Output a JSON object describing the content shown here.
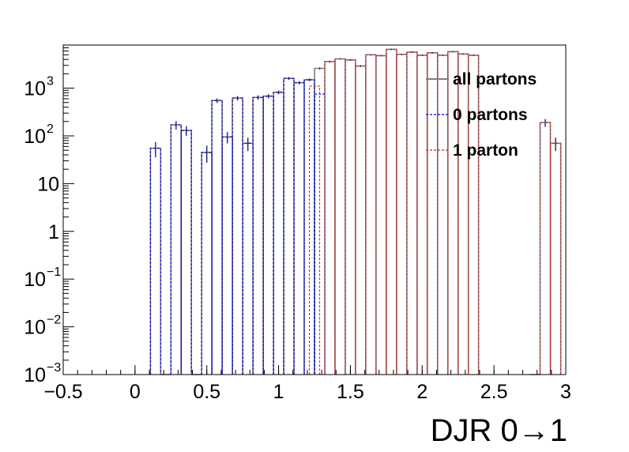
{
  "chart_data": {
    "type": "histogram",
    "xlabel": "DJR 0→1",
    "ylabel": "",
    "y_scale": "log",
    "xlim": [
      -0.5,
      3.0
    ],
    "ylim": [
      0.001,
      8000
    ],
    "bin_width": 0.0714,
    "x_ticks": [
      -0.5,
      0,
      0.5,
      1,
      1.5,
      2,
      2.5,
      3
    ],
    "x_tick_labels": [
      "−0.5",
      "0",
      "0.5",
      "1",
      "1.5",
      "2",
      "2.5",
      "3"
    ],
    "y_ticks": [
      {
        "value": 0.001,
        "base": "10",
        "exp": "−3"
      },
      {
        "value": 0.01,
        "base": "10",
        "exp": "−2"
      },
      {
        "value": 0.1,
        "base": "10",
        "exp": "−1"
      },
      {
        "value": 1,
        "base": "1",
        "exp": ""
      },
      {
        "value": 10,
        "base": "10",
        "exp": ""
      },
      {
        "value": 100,
        "base": "10",
        "exp": "2"
      },
      {
        "value": 1000,
        "base": "10",
        "exp": "3"
      }
    ],
    "legend": {
      "position": "top-right"
    },
    "series": [
      {
        "name": "all partons",
        "color": "#7f7f7f",
        "style": "solid",
        "x": [
          0.143,
          0.214,
          0.286,
          0.357,
          0.429,
          0.5,
          0.571,
          0.643,
          0.714,
          0.786,
          0.857,
          0.929,
          1.0,
          1.071,
          1.143,
          1.214,
          1.286,
          1.357,
          1.429,
          1.5,
          1.571,
          1.643,
          1.714,
          1.786,
          1.857,
          1.929,
          2.0,
          2.071,
          2.143,
          2.214,
          2.286,
          2.357,
          2.786,
          2.857,
          2.929
        ],
        "values": [
          55,
          0,
          170,
          130,
          0,
          45,
          550,
          95,
          620,
          70,
          640,
          680,
          820,
          1600,
          1300,
          1500,
          2600,
          3600,
          4100,
          3900,
          2900,
          5000,
          4800,
          6500,
          5100,
          5700,
          4900,
          5500,
          4900,
          5800,
          5200,
          4900,
          0,
          190,
          70
        ],
        "errors_drawn": true
      },
      {
        "name": "0 partons",
        "color": "#0000cc",
        "style": "dashed",
        "x": [
          0.143,
          0.214,
          0.286,
          0.357,
          0.429,
          0.5,
          0.571,
          0.643,
          0.714,
          0.786,
          0.857,
          0.929,
          1.0,
          1.071,
          1.143,
          1.214,
          1.286
        ],
        "values": [
          55,
          0,
          170,
          130,
          0,
          45,
          550,
          95,
          620,
          70,
          640,
          680,
          820,
          1600,
          1300,
          1500,
          750
        ]
      },
      {
        "name": "1 parton",
        "color": "#b83232",
        "style": "dashed",
        "x": [
          1.25,
          1.357,
          1.429,
          1.5,
          1.571,
          1.643,
          1.714,
          1.786,
          1.857,
          1.929,
          2.0,
          2.071,
          2.143,
          2.214,
          2.286,
          2.357,
          2.786,
          2.857,
          2.929
        ],
        "values": [
          1100,
          3600,
          4100,
          3900,
          2900,
          5000,
          4800,
          6500,
          5100,
          5700,
          4900,
          5500,
          4900,
          5800,
          5200,
          4900,
          0,
          190,
          70
        ]
      }
    ]
  }
}
